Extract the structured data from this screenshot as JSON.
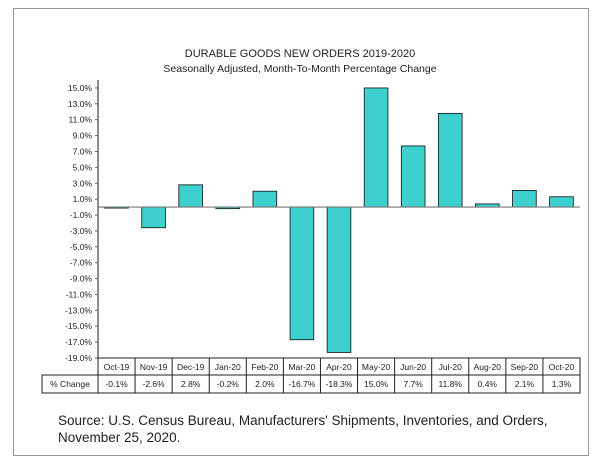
{
  "chart_data": {
    "type": "bar",
    "title": "DURABLE GOODS NEW ORDERS 2019-2020",
    "subtitle": "Seasonally Adjusted,  Month-To-Month Percentage Change",
    "categories": [
      "Oct-19",
      "Nov-19",
      "Dec-19",
      "Jan-20",
      "Feb-20",
      "Mar-20",
      "Apr-20",
      "May-20",
      "Jun-20",
      "Jul-20",
      "Aug-20",
      "Sep-20",
      "Oct-20"
    ],
    "values": [
      -0.1,
      -2.6,
      2.8,
      -0.2,
      2.0,
      -16.7,
      -18.3,
      15.0,
      7.7,
      11.8,
      0.4,
      2.1,
      1.3
    ],
    "value_labels": [
      "-0.1%",
      "-2.6%",
      "2.8%",
      "-0.2%",
      "2.0%",
      "-16.7%",
      "-18.3%",
      "15.0%",
      "7.7%",
      "11.8%",
      "0.4%",
      "2.1%",
      "1.3%"
    ],
    "table_row_label": "% Change",
    "yticks": [
      "15.0%",
      "13.0%",
      "11.0%",
      "9.0%",
      "7.0%",
      "5.0%",
      "3.0%",
      "1.0%",
      "-1.0%",
      "-3.0%",
      "-5.0%",
      "-7.0%",
      "-9.0%",
      "-11.0%",
      "-13.0%",
      "-15.0%",
      "-17.0%",
      "-19.0%"
    ],
    "ytick_values": [
      15,
      13,
      11,
      9,
      7,
      5,
      3,
      1,
      -1,
      -3,
      -5,
      -7,
      -9,
      -11,
      -13,
      -15,
      -17,
      -19
    ],
    "ylim": [
      -19,
      16
    ],
    "grid": false,
    "bar_color": "#3ecfcf",
    "xlabel": "",
    "ylabel": ""
  },
  "source": "Source: U.S. Census Bureau, Manufacturers' Shipments, Inventories, and Orders, November 25, 2020."
}
